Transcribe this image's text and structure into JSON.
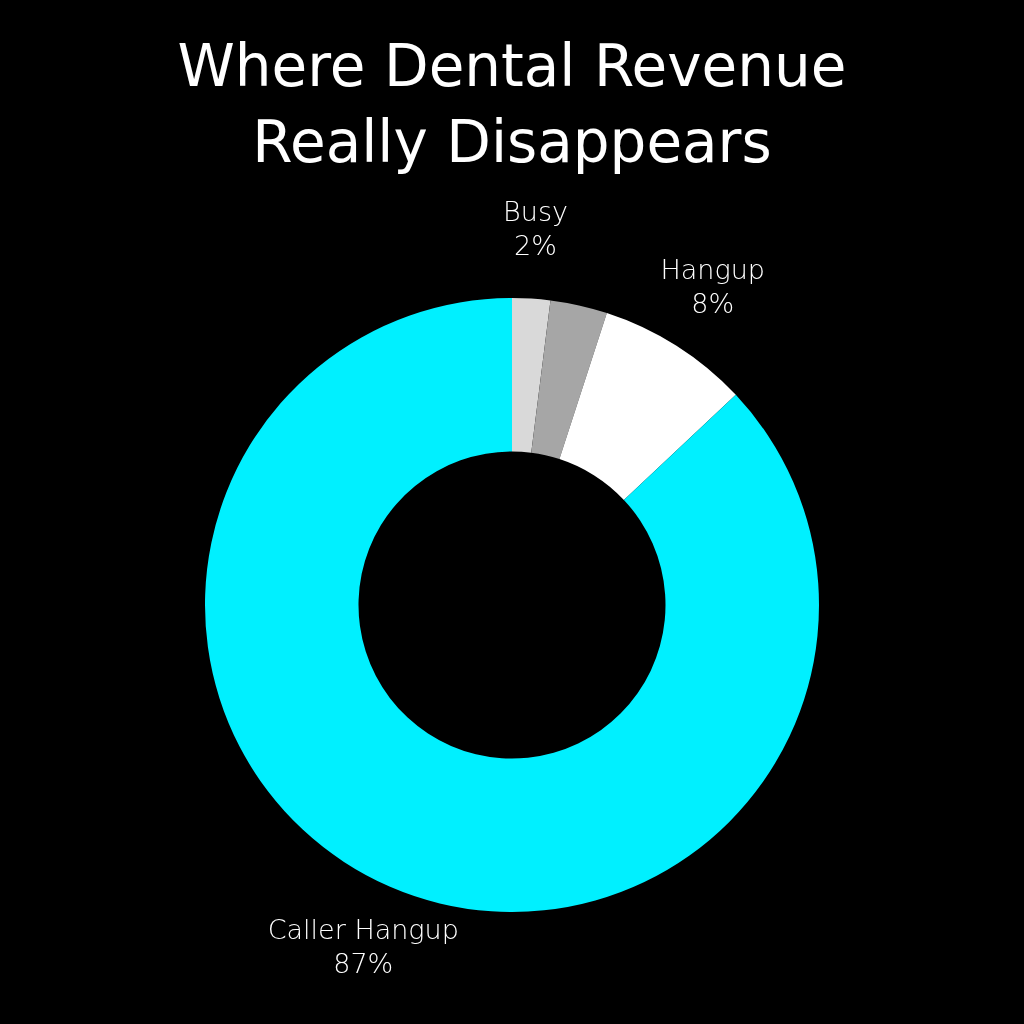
{
  "chart_data": {
    "type": "donut",
    "title": "Where Dental Revenue Really Disappears",
    "categories": [
      "Busy",
      null,
      "Hangup",
      "Caller Hangup"
    ],
    "values": [
      2,
      3,
      8,
      87
    ],
    "value_labels": [
      "2%",
      null,
      "8%",
      "87%"
    ],
    "colors": [
      "#d9d9d9",
      "#a6a6a6",
      "#ffffff",
      "#00f0ff"
    ]
  }
}
